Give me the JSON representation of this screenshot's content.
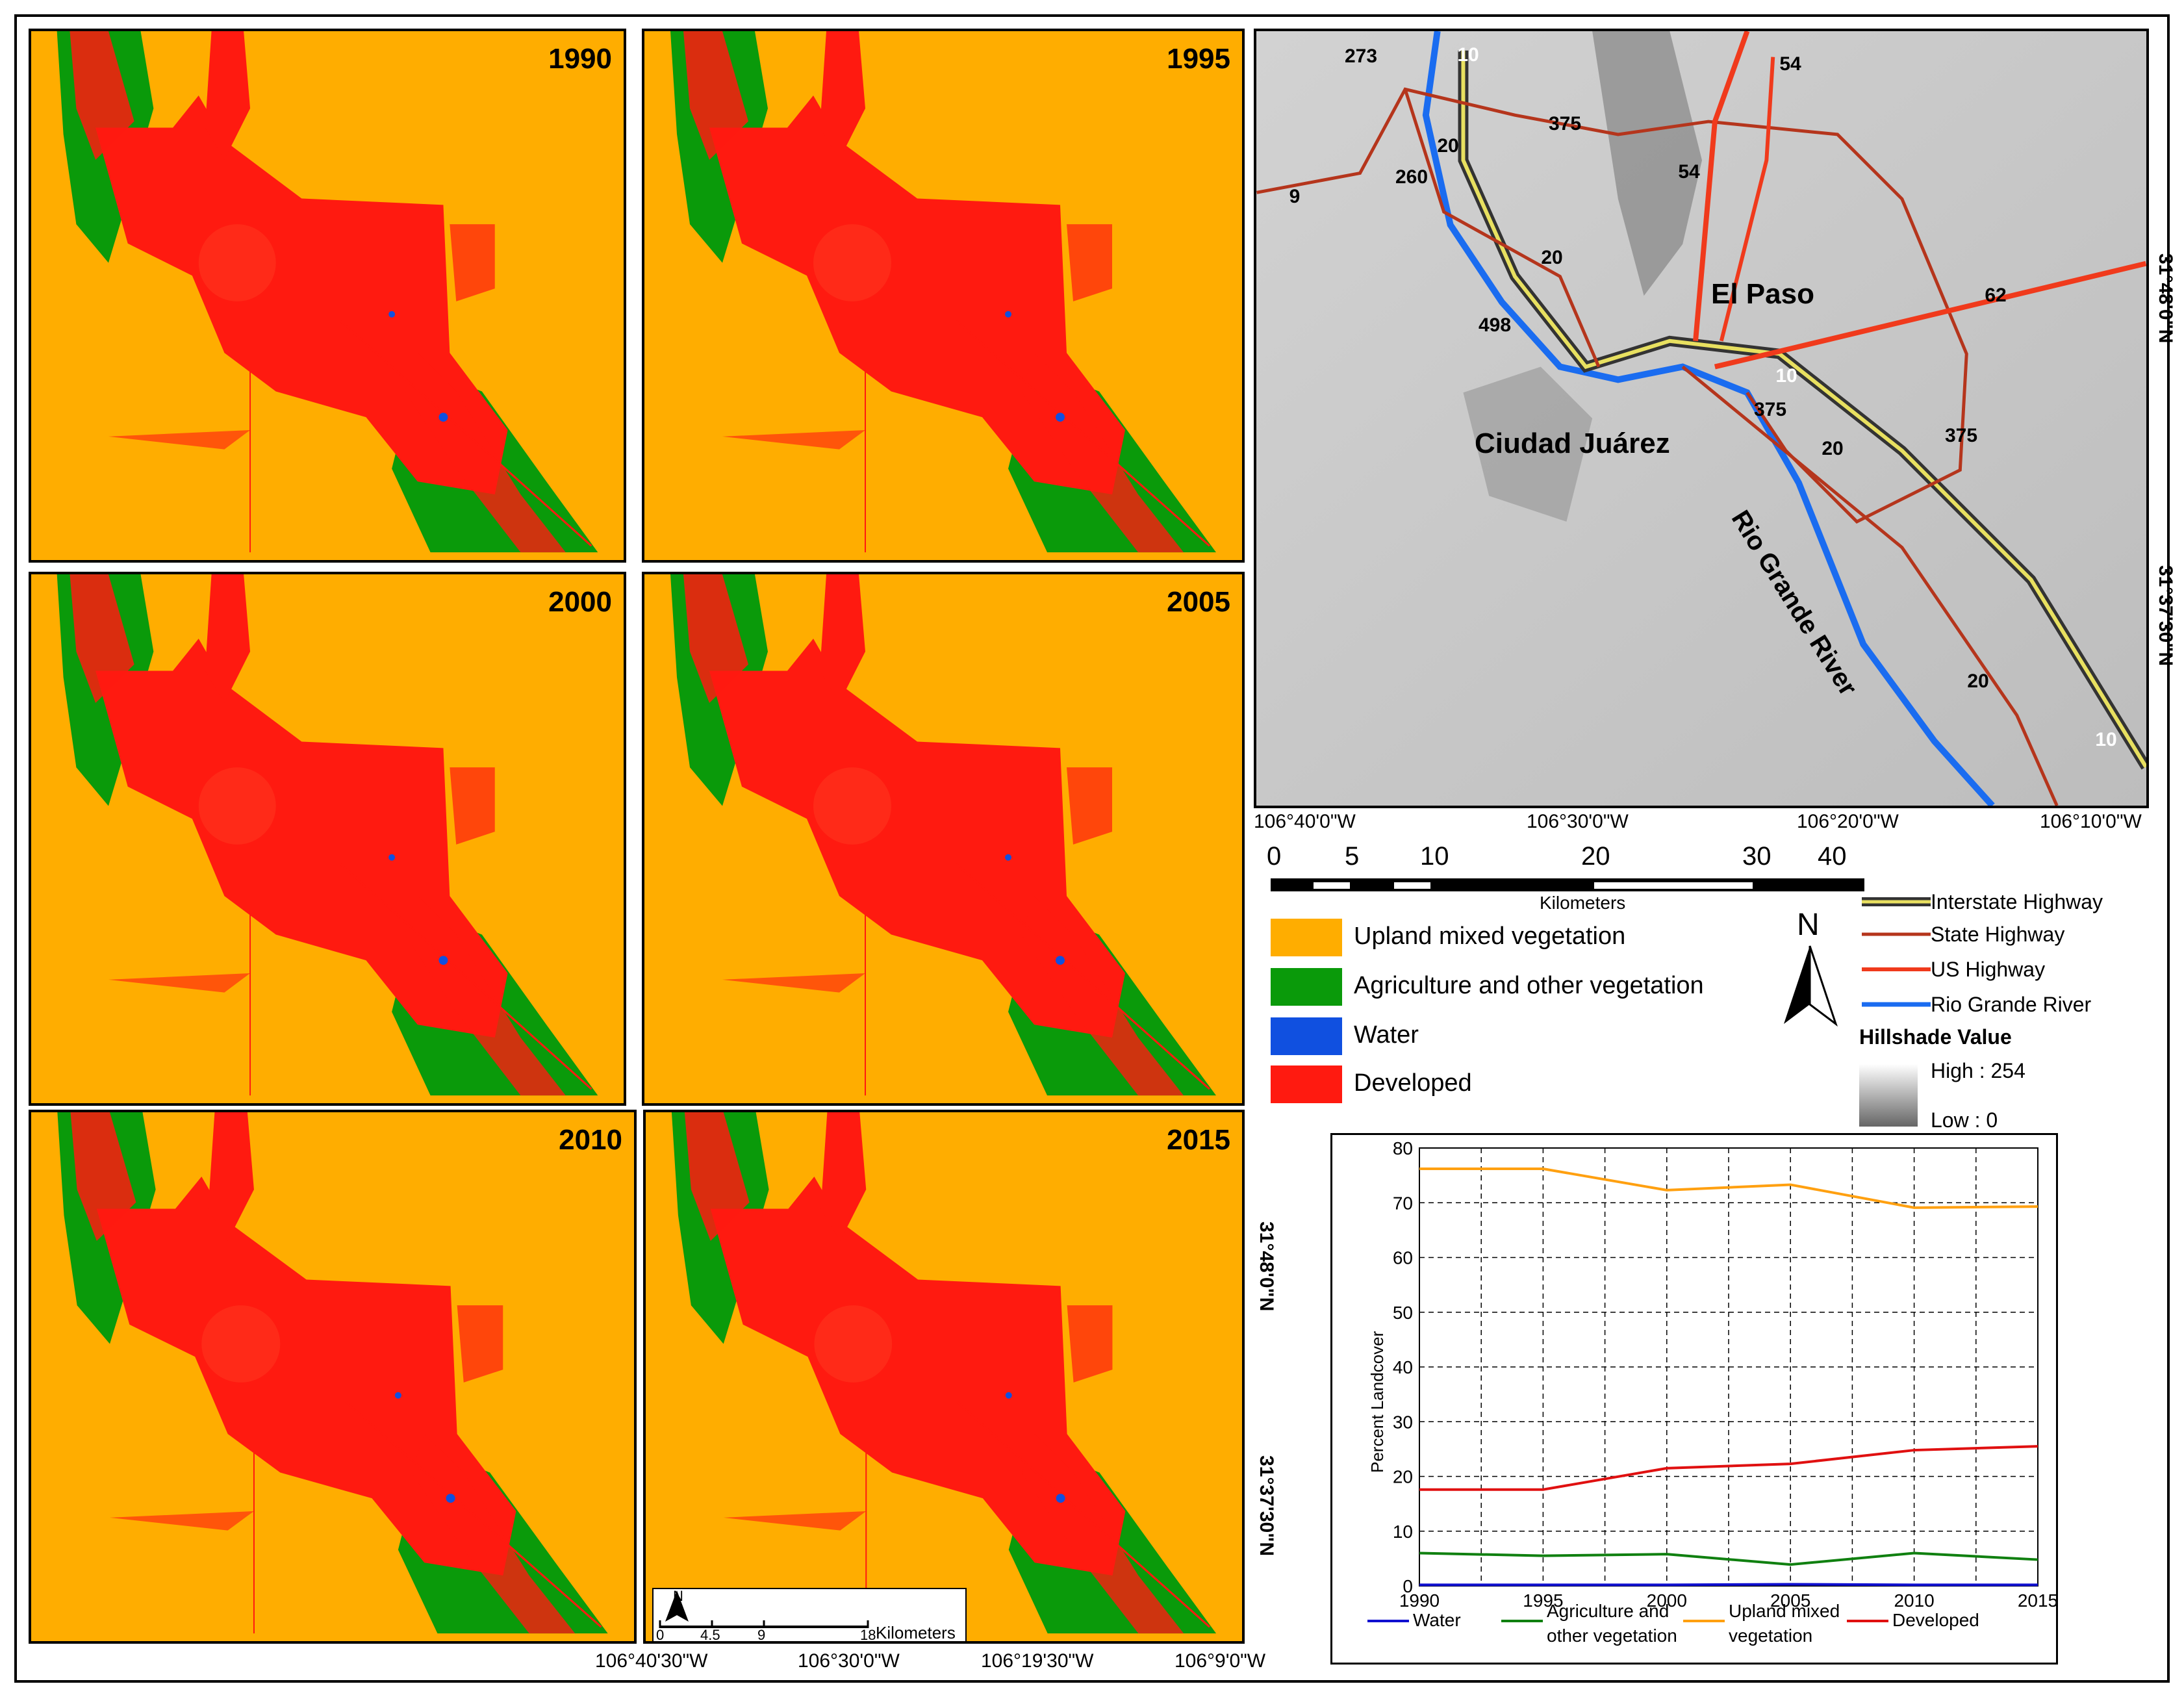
{
  "panels": [
    {
      "year": "1990"
    },
    {
      "year": "1995"
    },
    {
      "year": "2000"
    },
    {
      "year": "2005"
    },
    {
      "year": "2010"
    },
    {
      "year": "2015"
    }
  ],
  "colors": {
    "upland": "#ffad00",
    "agriculture": "#0a9a0a",
    "water": "#1050e0",
    "developed": "#ff1a10",
    "interstate": "#e8e060",
    "state_highway": "#b5351c",
    "us_highway": "#f03a1c",
    "river": "#1a6cf0"
  },
  "bottom_coords": [
    "106°40'30\"W",
    "106°30'0\"W",
    "106°19'30\"W",
    "106°9'0\"W"
  ],
  "left_coords": [
    "31°48'0\"N",
    "31°37'30\"N"
  ],
  "small_scale": {
    "ticks": [
      "0",
      "4.5",
      "9",
      "18"
    ],
    "unit": "Kilometers",
    "north": "N"
  },
  "reference_map": {
    "labels": {
      "el_paso": "El Paso",
      "juarez": "Ciudad Juárez",
      "river": "Rio Grande River"
    },
    "shields_circle": [
      "273",
      "20",
      "375",
      "260",
      "9",
      "20",
      "498",
      "375",
      "20",
      "375",
      "20"
    ],
    "shields_us": [
      "54",
      "54",
      "62"
    ],
    "shields_interstate": [
      "10",
      "10",
      "10"
    ],
    "top_coords": [
      "106°40'0\"W",
      "106°30'0\"W",
      "106°20'0\"W",
      "106°10'0\"W"
    ],
    "right_coords": [
      "31°48'0\"N",
      "31°37'30\"N"
    ]
  },
  "big_scale": {
    "ticks": [
      "0",
      "5",
      "10",
      "20",
      "30",
      "40"
    ],
    "unit": "Kilometers"
  },
  "legend": {
    "classes": [
      "Upland mixed vegetation",
      "Agriculture and other vegetation",
      "Water",
      "Developed"
    ],
    "lines": [
      "Interstate Highway",
      "State Highway",
      "US Highway",
      "Rio Grande River"
    ],
    "hillshade_title": "Hillshade Value",
    "hillshade_high": "High : 254",
    "hillshade_low": "Low : 0",
    "north": "N"
  },
  "chart_data": {
    "type": "line",
    "x": [
      1990,
      1995,
      2000,
      2005,
      2010,
      2015
    ],
    "ylabel": "Percent Landcover",
    "xlabel": "",
    "ylim": [
      0,
      80
    ],
    "yticks": [
      0,
      10,
      20,
      30,
      40,
      50,
      60,
      70,
      80
    ],
    "xticks": [
      "1990",
      "1995",
      "2000",
      "2005",
      "2010",
      "2015"
    ],
    "grid": "dashed",
    "series": [
      {
        "name": "Water",
        "color": "#1010d0",
        "values": [
          0.2,
          0.2,
          0.2,
          0.3,
          0.2,
          0.2
        ]
      },
      {
        "name": "Agriculture and other vegetation",
        "color": "#108010",
        "values": [
          6.0,
          5.5,
          5.8,
          3.9,
          6.0,
          4.8
        ]
      },
      {
        "name": "Upland mixed vegetation",
        "color": "#ffa010",
        "values": [
          76.2,
          76.2,
          72.3,
          73.3,
          69.1,
          69.3
        ]
      },
      {
        "name": "Developed",
        "color": "#e01010",
        "values": [
          17.6,
          17.6,
          21.5,
          22.3,
          24.8,
          25.5
        ]
      }
    ],
    "legend_labels": [
      [
        "Water"
      ],
      [
        "Agriculture and",
        "other vegetation"
      ],
      [
        "Upland mixed",
        "vegetation"
      ],
      [
        "Developed"
      ]
    ]
  }
}
